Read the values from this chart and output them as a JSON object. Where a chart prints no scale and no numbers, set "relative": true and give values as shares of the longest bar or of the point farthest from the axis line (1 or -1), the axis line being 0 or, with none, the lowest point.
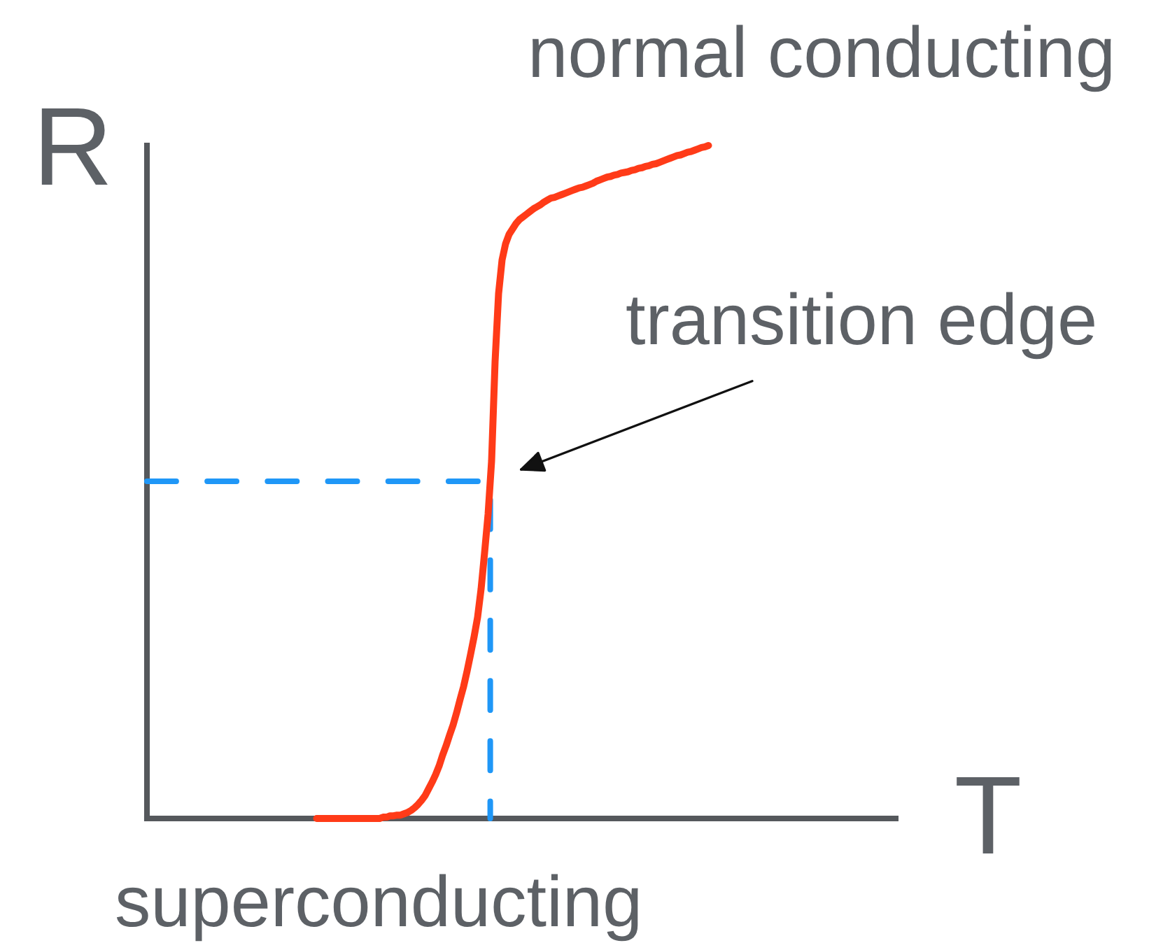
{
  "chart_data": {
    "type": "line",
    "relative": true,
    "xlabel": "T",
    "ylabel": "R",
    "categories": [
      null,
      null,
      null,
      null,
      null,
      null,
      null,
      null,
      null,
      null,
      null,
      null,
      null,
      null,
      null,
      null,
      null,
      null,
      null,
      null,
      null,
      null,
      null,
      null,
      null,
      null,
      null,
      null,
      null,
      null,
      null,
      null,
      null,
      null,
      null,
      null,
      null,
      null,
      null,
      null,
      null,
      null,
      null,
      null,
      null,
      null,
      null,
      null,
      null,
      null,
      null,
      null,
      null,
      null,
      null,
      null,
      null,
      null,
      null,
      null,
      null,
      null,
      null,
      null,
      null,
      null,
      null,
      null,
      null,
      null,
      null,
      null,
      null,
      null,
      null,
      null,
      null,
      null,
      null,
      null,
      null,
      null,
      null,
      null,
      null,
      null,
      null,
      null,
      null,
      null,
      null,
      null,
      null,
      null,
      null,
      null,
      null,
      null,
      null,
      null,
      null,
      null,
      null,
      null,
      null,
      null,
      null,
      null,
      null,
      null,
      null,
      null,
      null,
      null,
      null,
      null,
      null,
      null,
      null,
      null,
      null,
      null,
      null,
      null,
      null,
      null,
      null,
      null,
      null,
      null,
      null,
      null,
      null,
      null,
      null,
      null,
      null,
      null,
      null,
      null,
      null,
      null,
      null,
      null,
      null,
      null,
      null,
      null,
      null,
      null,
      null,
      null,
      null,
      null,
      null,
      null,
      null,
      null,
      null,
      null,
      null,
      null,
      null,
      null,
      null,
      null,
      null,
      null,
      null,
      null,
      null,
      null,
      null,
      null,
      null,
      null,
      null,
      null,
      null,
      null,
      null,
      null,
      null,
      null,
      null,
      null,
      null,
      null,
      null,
      null,
      null,
      null,
      null,
      null,
      null,
      null,
      null,
      null,
      null,
      null,
      null,
      null,
      null,
      null,
      null,
      null,
      null,
      null,
      null,
      null,
      null,
      null,
      null,
      null
    ],
    "series": [
      {
        "color": "#ff3b18",
        "line_style": "solid",
        "values": [
          null,
          null,
          null,
          null,
          null,
          null,
          null,
          null,
          null,
          null,
          null,
          null,
          null,
          null,
          null,
          null,
          null,
          null,
          null,
          null,
          null,
          null,
          null,
          null,
          null,
          null,
          null,
          null,
          null,
          null,
          null,
          null,
          null,
          null,
          null,
          null,
          null,
          null,
          null,
          null,
          null,
          null,
          null,
          null,
          null,
          null,
          null,
          null,
          0,
          0,
          0,
          0,
          0,
          0,
          0,
          0,
          0,
          0,
          0,
          0,
          0,
          0,
          0,
          0,
          0,
          0,
          0,
          0.002,
          0.002,
          0.004,
          0.004,
          0.005,
          0.005,
          0.007,
          0.009,
          0.012,
          0.016,
          0.021,
          0.027,
          0.034,
          0.044,
          0.054,
          0.065,
          0.078,
          0.094,
          0.108,
          0.124,
          0.139,
          0.157,
          0.177,
          0.196,
          0.219,
          0.244,
          0.27,
          0.299,
          0.341,
          0.395,
          0.452,
          0.531,
          0.679,
          0.78,
          0.83,
          0.854,
          0.868,
          0.876,
          0.884,
          0.89,
          0.894,
          0.898,
          0.902,
          0.906,
          0.909,
          0.912,
          0.916,
          0.919,
          0.922,
          0.923,
          0.925,
          0.927,
          0.929,
          0.931,
          0.933,
          0.935,
          0.937,
          0.938,
          0.94,
          0.942,
          0.944,
          0.947,
          0.949,
          0.951,
          0.953,
          0.954,
          0.956,
          0.957,
          0.959,
          0.96,
          0.961,
          0.963,
          0.964,
          0.966,
          0.967,
          0.969,
          0.97,
          0.972,
          0.973,
          0.975,
          0.977,
          0.979,
          0.981,
          0.983,
          0.985,
          0.986,
          0.988,
          0.99,
          0.991,
          0.993,
          0.995,
          0.997,
          0.998,
          1,
          null,
          null,
          null,
          null,
          null,
          null,
          null,
          null,
          null,
          null,
          null,
          null,
          null,
          null,
          null,
          null,
          null,
          null,
          null,
          null,
          null,
          null,
          null,
          null,
          null,
          null,
          null,
          null,
          null,
          null,
          null,
          null,
          null,
          null,
          null,
          null,
          null,
          null,
          null,
          null,
          null,
          null,
          null,
          null,
          null,
          null,
          null,
          null,
          null,
          null,
          null,
          null,
          null
        ]
      }
    ],
    "ref_lines": [
      {
        "axis": "y",
        "value": 0.501,
        "color": "#1f97f7",
        "line_style": "dashed"
      }
    ],
    "annotations": [
      "normal conducting",
      "transition edge",
      "superconducting"
    ]
  }
}
